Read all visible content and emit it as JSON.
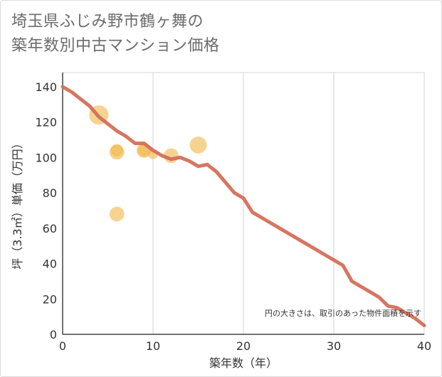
{
  "chart_data": {
    "type": "scatter",
    "title": "埼玉県ふじみ野市鶴ヶ舞の\n築年数別中古マンション価格",
    "xlabel": "築年数（年）",
    "ylabel": "坪（3.3㎡）単価（万円）",
    "xlim": [
      0,
      40
    ],
    "ylim": [
      0,
      148
    ],
    "xticks": [
      0,
      10,
      20,
      30,
      40
    ],
    "yticks": [
      0,
      20,
      40,
      60,
      80,
      100,
      120,
      140
    ],
    "note": "円の大きさは、取引のあった物件面積を示す",
    "colors": {
      "bubble": "#f2b54a",
      "line": "#d46f5a",
      "grid": "#cdd5e0"
    },
    "bubbles": [
      {
        "x": 4,
        "y": 124,
        "size": 3
      },
      {
        "x": 6,
        "y": 104,
        "size": 1.5
      },
      {
        "x": 6,
        "y": 103,
        "size": 2
      },
      {
        "x": 6,
        "y": 68,
        "size": 2
      },
      {
        "x": 9,
        "y": 104,
        "size": 2
      },
      {
        "x": 9,
        "y": 104,
        "size": 1.5
      },
      {
        "x": 10,
        "y": 102,
        "size": 1
      },
      {
        "x": 12,
        "y": 101,
        "size": 2
      },
      {
        "x": 15,
        "y": 107,
        "size": 2.5
      }
    ],
    "trend": {
      "x": [
        0,
        1,
        2,
        3,
        4,
        5,
        6,
        7,
        8,
        9,
        10,
        11,
        12,
        13,
        14,
        15,
        16,
        17,
        18,
        19,
        20,
        21,
        22,
        23,
        24,
        25,
        26,
        27,
        28,
        29,
        30,
        31,
        32,
        33,
        34,
        35,
        36,
        37,
        38,
        39,
        40
      ],
      "y": [
        140,
        137,
        133,
        129,
        123,
        119,
        115,
        112,
        108,
        108,
        104,
        101,
        99,
        100,
        98,
        95,
        96,
        92,
        86,
        80,
        77,
        69,
        66,
        63,
        60,
        57,
        54,
        51,
        48,
        45,
        42,
        39,
        30,
        27,
        24,
        21,
        16,
        15,
        12,
        9,
        5
      ]
    }
  }
}
